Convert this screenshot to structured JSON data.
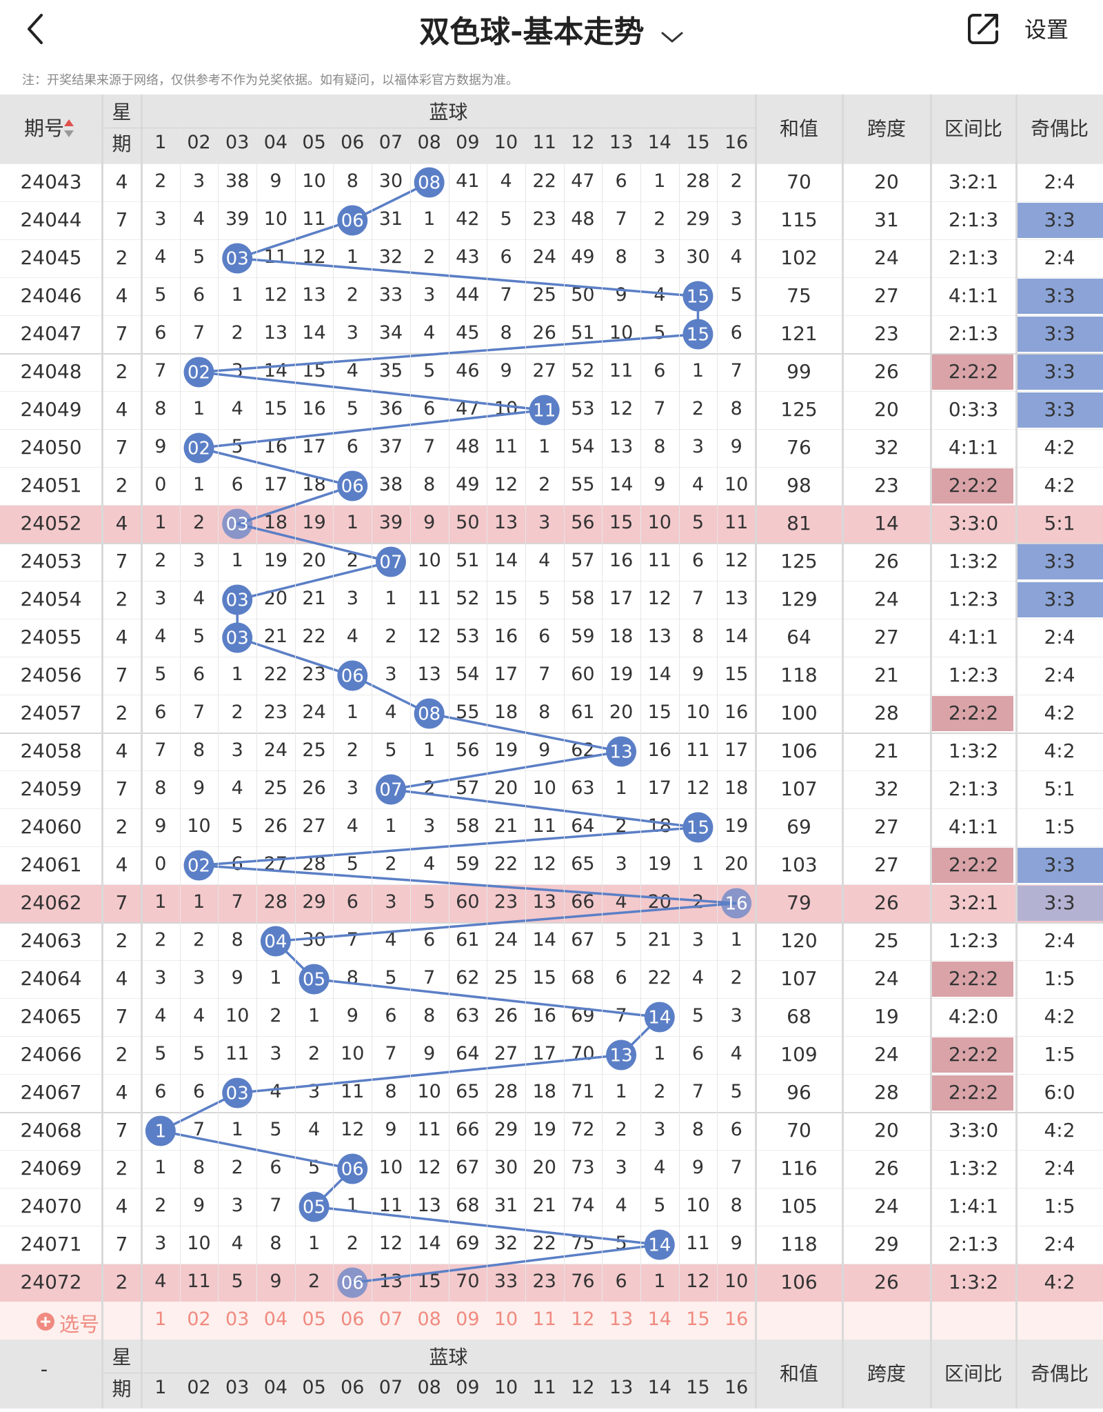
{
  "header": {
    "title": "双色球-基本走势",
    "settings_label": "设置"
  },
  "note": "注：开奖结果来源于网络，仅供参考不作为兑奖依据。如有疑问，以福体彩官方数据为准。",
  "table_header": {
    "issue": "期号",
    "week_top": "星",
    "week_bottom": "期",
    "blue": "蓝球",
    "numbers": [
      "1",
      "02",
      "03",
      "04",
      "05",
      "06",
      "07",
      "08",
      "09",
      "10",
      "11",
      "12",
      "13",
      "14",
      "15",
      "16"
    ],
    "sum": "和值",
    "span": "跨度",
    "zone": "区间比",
    "oddeven": "奇偶比"
  },
  "pick_row": {
    "label": "选号",
    "numbers": [
      "1",
      "02",
      "03",
      "04",
      "05",
      "06",
      "07",
      "08",
      "09",
      "10",
      "11",
      "12",
      "13",
      "14",
      "15",
      "16"
    ]
  },
  "footer_header": {
    "issue": "-",
    "week_top": "星",
    "week_bottom": "期",
    "blue": "蓝球",
    "numbers": [
      "1",
      "02",
      "03",
      "04",
      "05",
      "06",
      "07",
      "08",
      "09",
      "10",
      "11",
      "12",
      "13",
      "14",
      "15",
      "16"
    ],
    "sum": "和值",
    "span": "跨度",
    "zone": "区间比",
    "oddeven": "奇偶比"
  },
  "rows": [
    {
      "issue": "24043",
      "week": "4",
      "cells": [
        "2",
        "3",
        "38",
        "9",
        "10",
        "8",
        "30",
        "08",
        "41",
        "4",
        "22",
        "47",
        "6",
        "1",
        "28",
        "2"
      ],
      "hit": 8,
      "sum": "70",
      "span": "20",
      "zone": "3:2:1",
      "oe": "2:4",
      "zone_hl": false,
      "oe_hl": false,
      "row_hl": false
    },
    {
      "issue": "24044",
      "week": "7",
      "cells": [
        "3",
        "4",
        "39",
        "10",
        "11",
        "06",
        "31",
        "1",
        "42",
        "5",
        "23",
        "48",
        "7",
        "2",
        "29",
        "3"
      ],
      "hit": 6,
      "sum": "115",
      "span": "31",
      "zone": "2:1:3",
      "oe": "3:3",
      "zone_hl": false,
      "oe_hl": true,
      "row_hl": false
    },
    {
      "issue": "24045",
      "week": "2",
      "cells": [
        "4",
        "5",
        "03",
        "11",
        "12",
        "1",
        "32",
        "2",
        "43",
        "6",
        "24",
        "49",
        "8",
        "3",
        "30",
        "4"
      ],
      "hit": 3,
      "sum": "102",
      "span": "24",
      "zone": "2:1:3",
      "oe": "2:4",
      "zone_hl": false,
      "oe_hl": false,
      "row_hl": false
    },
    {
      "issue": "24046",
      "week": "4",
      "cells": [
        "5",
        "6",
        "1",
        "12",
        "13",
        "2",
        "33",
        "3",
        "44",
        "7",
        "25",
        "50",
        "9",
        "4",
        "15",
        "5"
      ],
      "hit": 15,
      "sum": "75",
      "span": "27",
      "zone": "4:1:1",
      "oe": "3:3",
      "zone_hl": false,
      "oe_hl": true,
      "row_hl": false
    },
    {
      "issue": "24047",
      "week": "7",
      "cells": [
        "6",
        "7",
        "2",
        "13",
        "14",
        "3",
        "34",
        "4",
        "45",
        "8",
        "26",
        "51",
        "10",
        "5",
        "15",
        "6"
      ],
      "hit": 15,
      "sum": "121",
      "span": "23",
      "zone": "2:1:3",
      "oe": "3:3",
      "zone_hl": false,
      "oe_hl": true,
      "row_hl": false
    },
    {
      "issue": "24048",
      "week": "2",
      "cells": [
        "7",
        "02",
        "3",
        "14",
        "15",
        "4",
        "35",
        "5",
        "46",
        "9",
        "27",
        "52",
        "11",
        "6",
        "1",
        "7"
      ],
      "hit": 2,
      "sum": "99",
      "span": "26",
      "zone": "2:2:2",
      "oe": "3:3",
      "zone_hl": true,
      "oe_hl": true,
      "row_hl": false
    },
    {
      "issue": "24049",
      "week": "4",
      "cells": [
        "8",
        "1",
        "4",
        "15",
        "16",
        "5",
        "36",
        "6",
        "47",
        "10",
        "11",
        "53",
        "12",
        "7",
        "2",
        "8"
      ],
      "hit": 11,
      "sum": "125",
      "span": "20",
      "zone": "0:3:3",
      "oe": "3:3",
      "zone_hl": false,
      "oe_hl": true,
      "row_hl": false
    },
    {
      "issue": "24050",
      "week": "7",
      "cells": [
        "9",
        "02",
        "5",
        "16",
        "17",
        "6",
        "37",
        "7",
        "48",
        "11",
        "1",
        "54",
        "13",
        "8",
        "3",
        "9"
      ],
      "hit": 2,
      "sum": "76",
      "span": "32",
      "zone": "4:1:1",
      "oe": "4:2",
      "zone_hl": false,
      "oe_hl": false,
      "row_hl": false
    },
    {
      "issue": "24051",
      "week": "2",
      "cells": [
        "0",
        "1",
        "6",
        "17",
        "18",
        "06",
        "38",
        "8",
        "49",
        "12",
        "2",
        "55",
        "14",
        "9",
        "4",
        "10"
      ],
      "hit": 6,
      "sum": "98",
      "span": "23",
      "zone": "2:2:2",
      "oe": "4:2",
      "zone_hl": true,
      "oe_hl": false,
      "row_hl": false
    },
    {
      "issue": "24052",
      "week": "4",
      "cells": [
        "1",
        "2",
        "03",
        "18",
        "19",
        "1",
        "39",
        "9",
        "50",
        "13",
        "3",
        "56",
        "15",
        "10",
        "5",
        "11"
      ],
      "hit": 3,
      "sum": "81",
      "span": "14",
      "zone": "3:3:0",
      "oe": "5:1",
      "zone_hl": false,
      "oe_hl": false,
      "row_hl": true
    },
    {
      "issue": "24053",
      "week": "7",
      "cells": [
        "2",
        "3",
        "1",
        "19",
        "20",
        "2",
        "07",
        "10",
        "51",
        "14",
        "4",
        "57",
        "16",
        "11",
        "6",
        "12"
      ],
      "hit": 7,
      "sum": "125",
      "span": "26",
      "zone": "1:3:2",
      "oe": "3:3",
      "zone_hl": false,
      "oe_hl": true,
      "row_hl": false
    },
    {
      "issue": "24054",
      "week": "2",
      "cells": [
        "3",
        "4",
        "03",
        "20",
        "21",
        "3",
        "1",
        "11",
        "52",
        "15",
        "5",
        "58",
        "17",
        "12",
        "7",
        "13"
      ],
      "hit": 3,
      "sum": "129",
      "span": "24",
      "zone": "1:2:3",
      "oe": "3:3",
      "zone_hl": false,
      "oe_hl": true,
      "row_hl": false
    },
    {
      "issue": "24055",
      "week": "4",
      "cells": [
        "4",
        "5",
        "03",
        "21",
        "22",
        "4",
        "2",
        "12",
        "53",
        "16",
        "6",
        "59",
        "18",
        "13",
        "8",
        "14"
      ],
      "hit": 3,
      "sum": "64",
      "span": "27",
      "zone": "4:1:1",
      "oe": "2:4",
      "zone_hl": false,
      "oe_hl": false,
      "row_hl": false
    },
    {
      "issue": "24056",
      "week": "7",
      "cells": [
        "5",
        "6",
        "1",
        "22",
        "23",
        "06",
        "3",
        "13",
        "54",
        "17",
        "7",
        "60",
        "19",
        "14",
        "9",
        "15"
      ],
      "hit": 6,
      "sum": "118",
      "span": "21",
      "zone": "1:2:3",
      "oe": "2:4",
      "zone_hl": false,
      "oe_hl": false,
      "row_hl": false
    },
    {
      "issue": "24057",
      "week": "2",
      "cells": [
        "6",
        "7",
        "2",
        "23",
        "24",
        "1",
        "4",
        "08",
        "55",
        "18",
        "8",
        "61",
        "20",
        "15",
        "10",
        "16"
      ],
      "hit": 8,
      "sum": "100",
      "span": "28",
      "zone": "2:2:2",
      "oe": "4:2",
      "zone_hl": true,
      "oe_hl": false,
      "row_hl": false
    },
    {
      "issue": "24058",
      "week": "4",
      "cells": [
        "7",
        "8",
        "3",
        "24",
        "25",
        "2",
        "5",
        "1",
        "56",
        "19",
        "9",
        "62",
        "13",
        "16",
        "11",
        "17"
      ],
      "hit": 13,
      "sum": "106",
      "span": "21",
      "zone": "1:3:2",
      "oe": "4:2",
      "zone_hl": false,
      "oe_hl": false,
      "row_hl": false
    },
    {
      "issue": "24059",
      "week": "7",
      "cells": [
        "8",
        "9",
        "4",
        "25",
        "26",
        "3",
        "07",
        "2",
        "57",
        "20",
        "10",
        "63",
        "1",
        "17",
        "12",
        "18"
      ],
      "hit": 7,
      "sum": "107",
      "span": "32",
      "zone": "2:1:3",
      "oe": "5:1",
      "zone_hl": false,
      "oe_hl": false,
      "row_hl": false
    },
    {
      "issue": "24060",
      "week": "2",
      "cells": [
        "9",
        "10",
        "5",
        "26",
        "27",
        "4",
        "1",
        "3",
        "58",
        "21",
        "11",
        "64",
        "2",
        "18",
        "15",
        "19"
      ],
      "hit": 15,
      "sum": "69",
      "span": "27",
      "zone": "4:1:1",
      "oe": "1:5",
      "zone_hl": false,
      "oe_hl": false,
      "row_hl": false
    },
    {
      "issue": "24061",
      "week": "4",
      "cells": [
        "0",
        "02",
        "6",
        "27",
        "28",
        "5",
        "2",
        "4",
        "59",
        "22",
        "12",
        "65",
        "3",
        "19",
        "1",
        "20"
      ],
      "hit": 2,
      "sum": "103",
      "span": "27",
      "zone": "2:2:2",
      "oe": "3:3",
      "zone_hl": true,
      "oe_hl": true,
      "row_hl": false
    },
    {
      "issue": "24062",
      "week": "7",
      "cells": [
        "1",
        "1",
        "7",
        "28",
        "29",
        "6",
        "3",
        "5",
        "60",
        "23",
        "13",
        "66",
        "4",
        "20",
        "2",
        "16"
      ],
      "hit": 16,
      "sum": "79",
      "span": "26",
      "zone": "3:2:1",
      "oe": "3:3",
      "zone_hl": false,
      "oe_hl": true,
      "row_hl": true
    },
    {
      "issue": "24063",
      "week": "2",
      "cells": [
        "2",
        "2",
        "8",
        "04",
        "30",
        "7",
        "4",
        "6",
        "61",
        "24",
        "14",
        "67",
        "5",
        "21",
        "3",
        "1"
      ],
      "hit": 4,
      "sum": "120",
      "span": "25",
      "zone": "1:2:3",
      "oe": "2:4",
      "zone_hl": false,
      "oe_hl": false,
      "row_hl": false
    },
    {
      "issue": "24064",
      "week": "4",
      "cells": [
        "3",
        "3",
        "9",
        "1",
        "05",
        "8",
        "5",
        "7",
        "62",
        "25",
        "15",
        "68",
        "6",
        "22",
        "4",
        "2"
      ],
      "hit": 5,
      "sum": "107",
      "span": "24",
      "zone": "2:2:2",
      "oe": "1:5",
      "zone_hl": true,
      "oe_hl": false,
      "row_hl": false
    },
    {
      "issue": "24065",
      "week": "7",
      "cells": [
        "4",
        "4",
        "10",
        "2",
        "1",
        "9",
        "6",
        "8",
        "63",
        "26",
        "16",
        "69",
        "7",
        "14",
        "5",
        "3"
      ],
      "hit": 14,
      "sum": "68",
      "span": "19",
      "zone": "4:2:0",
      "oe": "4:2",
      "zone_hl": false,
      "oe_hl": false,
      "row_hl": false
    },
    {
      "issue": "24066",
      "week": "2",
      "cells": [
        "5",
        "5",
        "11",
        "3",
        "2",
        "10",
        "7",
        "9",
        "64",
        "27",
        "17",
        "70",
        "13",
        "1",
        "6",
        "4"
      ],
      "hit": 13,
      "sum": "109",
      "span": "24",
      "zone": "2:2:2",
      "oe": "1:5",
      "zone_hl": true,
      "oe_hl": false,
      "row_hl": false
    },
    {
      "issue": "24067",
      "week": "4",
      "cells": [
        "6",
        "6",
        "03",
        "4",
        "3",
        "11",
        "8",
        "10",
        "65",
        "28",
        "18",
        "71",
        "1",
        "2",
        "7",
        "5"
      ],
      "hit": 3,
      "sum": "96",
      "span": "28",
      "zone": "2:2:2",
      "oe": "6:0",
      "zone_hl": true,
      "oe_hl": false,
      "row_hl": false
    },
    {
      "issue": "24068",
      "week": "7",
      "cells": [
        "1",
        "7",
        "1",
        "5",
        "4",
        "12",
        "9",
        "11",
        "66",
        "29",
        "19",
        "72",
        "2",
        "3",
        "8",
        "6"
      ],
      "hit": 1,
      "sum": "70",
      "span": "20",
      "zone": "3:3:0",
      "oe": "4:2",
      "zone_hl": false,
      "oe_hl": false,
      "row_hl": false
    },
    {
      "issue": "24069",
      "week": "2",
      "cells": [
        "1",
        "8",
        "2",
        "6",
        "5",
        "06",
        "10",
        "12",
        "67",
        "30",
        "20",
        "73",
        "3",
        "4",
        "9",
        "7"
      ],
      "hit": 6,
      "sum": "116",
      "span": "26",
      "zone": "1:3:2",
      "oe": "2:4",
      "zone_hl": false,
      "oe_hl": false,
      "row_hl": false
    },
    {
      "issue": "24070",
      "week": "4",
      "cells": [
        "2",
        "9",
        "3",
        "7",
        "05",
        "1",
        "11",
        "13",
        "68",
        "31",
        "21",
        "74",
        "4",
        "5",
        "10",
        "8"
      ],
      "hit": 5,
      "sum": "105",
      "span": "24",
      "zone": "1:4:1",
      "oe": "1:5",
      "zone_hl": false,
      "oe_hl": false,
      "row_hl": false
    },
    {
      "issue": "24071",
      "week": "7",
      "cells": [
        "3",
        "10",
        "4",
        "8",
        "1",
        "2",
        "12",
        "14",
        "69",
        "32",
        "22",
        "75",
        "5",
        "14",
        "11",
        "9"
      ],
      "hit": 14,
      "sum": "118",
      "span": "29",
      "zone": "2:1:3",
      "oe": "2:4",
      "zone_hl": false,
      "oe_hl": false,
      "row_hl": false
    },
    {
      "issue": "24072",
      "week": "2",
      "cells": [
        "4",
        "11",
        "5",
        "9",
        "2",
        "06",
        "13",
        "15",
        "70",
        "33",
        "23",
        "76",
        "6",
        "1",
        "12",
        "10"
      ],
      "hit": 6,
      "sum": "106",
      "span": "26",
      "zone": "1:3:2",
      "oe": "4:2",
      "zone_hl": false,
      "oe_hl": false,
      "row_hl": true
    }
  ],
  "colors": {
    "ball": "#5b7fc6",
    "ball_line": "#5b7fc6",
    "row_hl": "#f3c9cc",
    "zone_hl": "#d9a3a8",
    "oe_hl": "#8ba3d6",
    "header_bg": "#e5e5e5",
    "pick_bg": "#fdf0ee",
    "pick_text": "#f08a80"
  },
  "icons": {
    "back": "chevron-left-icon",
    "title_dropdown": "chevron-down-icon",
    "share": "share-external-icon",
    "add": "plus-circle-icon"
  }
}
